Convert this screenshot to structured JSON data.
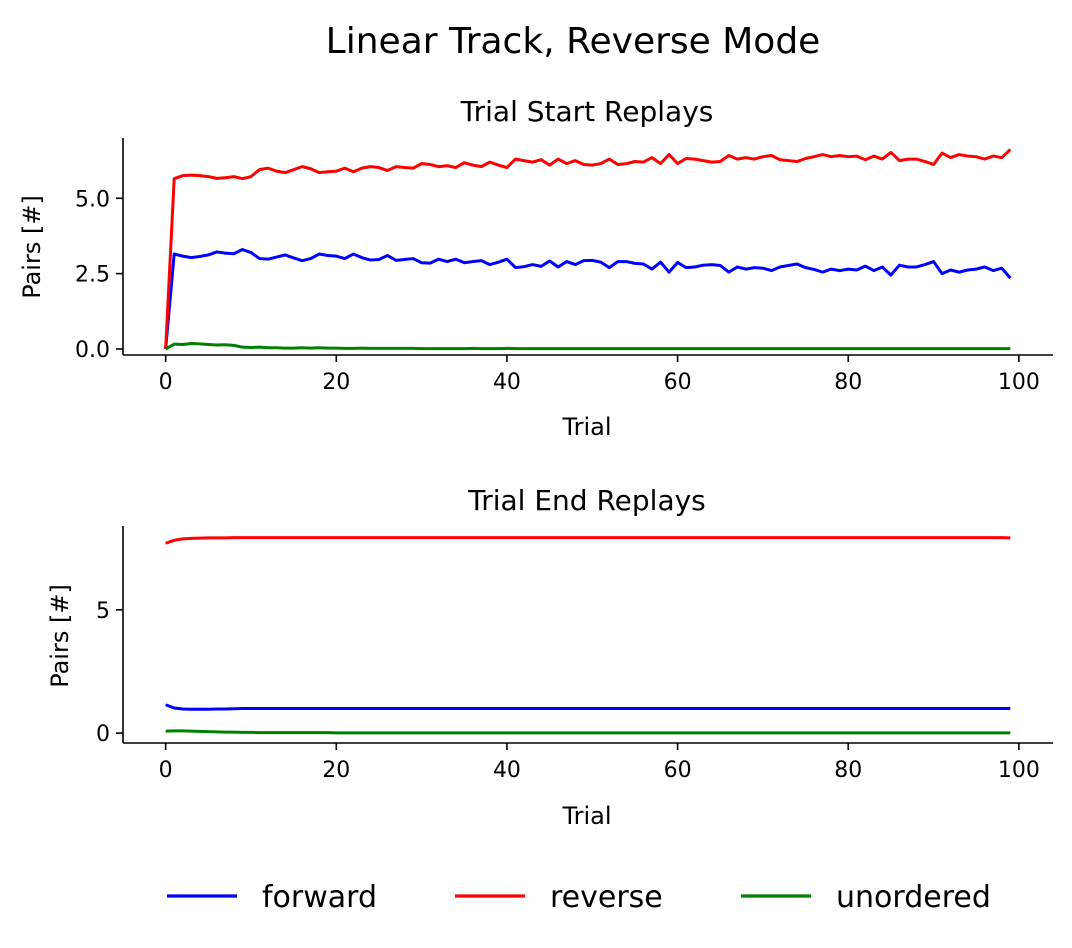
{
  "figure": {
    "title": "Linear Track, Reverse Mode",
    "legend": [
      {
        "label": "forward",
        "color": "#0000ff"
      },
      {
        "label": "reverse",
        "color": "#ff0000"
      },
      {
        "label": "unordered",
        "color": "#008000"
      }
    ],
    "legend_placement": "bottom-center"
  },
  "chart_data": [
    {
      "type": "line",
      "title": "Trial Start Replays",
      "xlabel": "Trial",
      "ylabel": "Pairs [#]",
      "xlim": [
        -5,
        104
      ],
      "ylim": [
        -0.2,
        7.0
      ],
      "xticks": [
        0,
        20,
        40,
        60,
        80,
        100
      ],
      "xtick_labels": [
        "0",
        "20",
        "40",
        "60",
        "80",
        "100"
      ],
      "yticks": [
        0,
        2.5,
        5
      ],
      "ytick_labels": [
        "0.0",
        "2.5",
        "5.0"
      ],
      "grid": false,
      "series": [
        {
          "name": "forward",
          "color": "#0000ff",
          "values": [
            0.0,
            3.15,
            3.08,
            3.03,
            3.07,
            3.12,
            3.22,
            3.18,
            3.16,
            3.3,
            3.2,
            3.0,
            2.98,
            3.05,
            3.12,
            3.02,
            2.93,
            3.0,
            3.15,
            3.1,
            3.08,
            3.0,
            3.15,
            3.03,
            2.95,
            2.97,
            3.1,
            2.94,
            2.97,
            3.0,
            2.86,
            2.85,
            2.98,
            2.9,
            2.98,
            2.86,
            2.9,
            2.93,
            2.8,
            2.88,
            2.98,
            2.7,
            2.73,
            2.8,
            2.74,
            2.92,
            2.72,
            2.9,
            2.8,
            2.93,
            2.94,
            2.88,
            2.7,
            2.9,
            2.9,
            2.84,
            2.82,
            2.65,
            2.88,
            2.55,
            2.87,
            2.7,
            2.72,
            2.78,
            2.8,
            2.77,
            2.55,
            2.72,
            2.65,
            2.7,
            2.68,
            2.6,
            2.72,
            2.77,
            2.82,
            2.7,
            2.64,
            2.55,
            2.65,
            2.6,
            2.65,
            2.62,
            2.75,
            2.6,
            2.72,
            2.45,
            2.78,
            2.72,
            2.72,
            2.8,
            2.9,
            2.5,
            2.62,
            2.55,
            2.62,
            2.65,
            2.72,
            2.6,
            2.68,
            2.35
          ]
        },
        {
          "name": "reverse",
          "color": "#ff0000",
          "values": [
            0.0,
            5.65,
            5.75,
            5.77,
            5.75,
            5.72,
            5.66,
            5.68,
            5.72,
            5.65,
            5.72,
            5.95,
            6.0,
            5.9,
            5.85,
            5.95,
            6.05,
            5.98,
            5.85,
            5.88,
            5.9,
            6.0,
            5.88,
            6.0,
            6.05,
            6.02,
            5.92,
            6.05,
            6.02,
            6.0,
            6.15,
            6.12,
            6.05,
            6.08,
            6.02,
            6.18,
            6.1,
            6.05,
            6.2,
            6.1,
            6.02,
            6.3,
            6.25,
            6.2,
            6.28,
            6.1,
            6.3,
            6.15,
            6.25,
            6.12,
            6.1,
            6.15,
            6.3,
            6.12,
            6.15,
            6.22,
            6.2,
            6.35,
            6.15,
            6.45,
            6.15,
            6.32,
            6.3,
            6.25,
            6.2,
            6.22,
            6.42,
            6.3,
            6.35,
            6.3,
            6.38,
            6.42,
            6.28,
            6.25,
            6.22,
            6.32,
            6.38,
            6.45,
            6.38,
            6.42,
            6.38,
            6.4,
            6.28,
            6.4,
            6.3,
            6.52,
            6.25,
            6.3,
            6.3,
            6.22,
            6.12,
            6.5,
            6.35,
            6.45,
            6.4,
            6.38,
            6.3,
            6.4,
            6.35,
            6.62
          ]
        },
        {
          "name": "unordered",
          "color": "#008000",
          "values": [
            0.0,
            0.16,
            0.15,
            0.18,
            0.17,
            0.15,
            0.13,
            0.14,
            0.12,
            0.06,
            0.05,
            0.06,
            0.04,
            0.04,
            0.03,
            0.03,
            0.04,
            0.03,
            0.04,
            0.03,
            0.03,
            0.02,
            0.02,
            0.03,
            0.02,
            0.02,
            0.02,
            0.02,
            0.02,
            0.02,
            0.01,
            0.01,
            0.01,
            0.01,
            0.01,
            0.01,
            0.02,
            0.01,
            0.01,
            0.01,
            0.02,
            0.01,
            0.01,
            0.01,
            0.01,
            0.01,
            0.01,
            0.01,
            0.01,
            0.01,
            0.01,
            0.01,
            0.01,
            0.01,
            0.01,
            0.01,
            0.01,
            0.01,
            0.01,
            0.01,
            0.01,
            0.01,
            0.01,
            0.01,
            0.01,
            0.01,
            0.01,
            0.01,
            0.01,
            0.01,
            0.01,
            0.01,
            0.01,
            0.01,
            0.01,
            0.01,
            0.01,
            0.01,
            0.01,
            0.01,
            0.01,
            0.01,
            0.01,
            0.01,
            0.01,
            0.01,
            0.01,
            0.01,
            0.01,
            0.01,
            0.01,
            0.01,
            0.01,
            0.01,
            0.01,
            0.01,
            0.01,
            0.01,
            0.01,
            0.01
          ]
        }
      ]
    },
    {
      "type": "line",
      "title": "Trial End Replays",
      "xlabel": "Trial",
      "ylabel": "Pairs [#]",
      "xlim": [
        -5,
        104
      ],
      "ylim": [
        -0.4,
        8.4
      ],
      "xticks": [
        0,
        20,
        40,
        60,
        80,
        100
      ],
      "xtick_labels": [
        "0",
        "20",
        "40",
        "60",
        "80",
        "100"
      ],
      "yticks": [
        0,
        5
      ],
      "ytick_labels": [
        "0",
        "5"
      ],
      "grid": false,
      "series": [
        {
          "name": "forward",
          "color": "#0000ff",
          "values": [
            1.15,
            1.02,
            0.98,
            0.97,
            0.97,
            0.97,
            0.98,
            0.98,
            0.99,
            1.0,
            1.0,
            1.0,
            1.0,
            1.0,
            1.0,
            1.0,
            1.0,
            1.0,
            1.0,
            1.0,
            1.0,
            1.0,
            1.0,
            1.0,
            1.0,
            1.0,
            1.0,
            1.0,
            1.0,
            1.0,
            1.0,
            1.0,
            1.0,
            1.0,
            1.0,
            1.0,
            1.0,
            1.0,
            1.0,
            1.0,
            1.0,
            1.0,
            1.0,
            1.0,
            1.0,
            1.0,
            1.0,
            1.0,
            1.0,
            1.0,
            1.0,
            1.0,
            1.0,
            1.0,
            1.0,
            1.0,
            1.0,
            1.0,
            1.0,
            1.0,
            1.0,
            1.0,
            1.0,
            1.0,
            1.0,
            1.0,
            1.0,
            1.0,
            1.0,
            1.0,
            1.0,
            1.0,
            1.0,
            1.0,
            1.0,
            1.0,
            1.0,
            1.0,
            1.0,
            1.0,
            1.0,
            1.0,
            1.0,
            1.0,
            1.0,
            1.0,
            1.0,
            1.0,
            1.0,
            1.0,
            1.0,
            1.0,
            1.0,
            1.0,
            1.0,
            1.0,
            1.0,
            1.0,
            1.0,
            1.0
          ]
        },
        {
          "name": "reverse",
          "color": "#ff0000",
          "values": [
            7.7,
            7.82,
            7.88,
            7.9,
            7.91,
            7.92,
            7.92,
            7.92,
            7.93,
            7.93,
            7.93,
            7.93,
            7.93,
            7.93,
            7.93,
            7.93,
            7.93,
            7.93,
            7.93,
            7.93,
            7.93,
            7.93,
            7.93,
            7.93,
            7.93,
            7.93,
            7.93,
            7.93,
            7.93,
            7.93,
            7.93,
            7.93,
            7.93,
            7.93,
            7.93,
            7.93,
            7.93,
            7.93,
            7.93,
            7.93,
            7.93,
            7.93,
            7.93,
            7.93,
            7.93,
            7.93,
            7.93,
            7.93,
            7.93,
            7.93,
            7.93,
            7.93,
            7.93,
            7.93,
            7.93,
            7.93,
            7.93,
            7.93,
            7.93,
            7.93,
            7.93,
            7.93,
            7.93,
            7.93,
            7.93,
            7.93,
            7.93,
            7.93,
            7.93,
            7.93,
            7.93,
            7.93,
            7.93,
            7.93,
            7.93,
            7.93,
            7.93,
            7.93,
            7.93,
            7.93,
            7.93,
            7.93,
            7.93,
            7.93,
            7.93,
            7.93,
            7.93,
            7.93,
            7.93,
            7.93,
            7.93,
            7.93,
            7.93,
            7.93,
            7.93,
            7.93,
            7.93,
            7.93,
            7.93,
            7.92
          ]
        },
        {
          "name": "unordered",
          "color": "#008000",
          "values": [
            0.08,
            0.09,
            0.09,
            0.08,
            0.07,
            0.06,
            0.05,
            0.04,
            0.04,
            0.03,
            0.03,
            0.02,
            0.02,
            0.02,
            0.02,
            0.02,
            0.02,
            0.02,
            0.02,
            0.02,
            0.01,
            0.01,
            0.01,
            0.01,
            0.01,
            0.01,
            0.01,
            0.01,
            0.01,
            0.01,
            0.01,
            0.01,
            0.01,
            0.01,
            0.01,
            0.01,
            0.01,
            0.01,
            0.01,
            0.01,
            0.01,
            0.01,
            0.01,
            0.01,
            0.01,
            0.01,
            0.01,
            0.01,
            0.01,
            0.01,
            0.01,
            0.01,
            0.01,
            0.01,
            0.01,
            0.01,
            0.01,
            0.01,
            0.01,
            0.01,
            0.01,
            0.01,
            0.01,
            0.01,
            0.01,
            0.01,
            0.01,
            0.01,
            0.01,
            0.01,
            0.01,
            0.01,
            0.01,
            0.01,
            0.01,
            0.01,
            0.01,
            0.01,
            0.01,
            0.01,
            0.01,
            0.01,
            0.01,
            0.01,
            0.01,
            0.01,
            0.01,
            0.01,
            0.01,
            0.01,
            0.01,
            0.01,
            0.01,
            0.01,
            0.01,
            0.01,
            0.01,
            0.01,
            0.01,
            0.01
          ]
        }
      ]
    }
  ]
}
